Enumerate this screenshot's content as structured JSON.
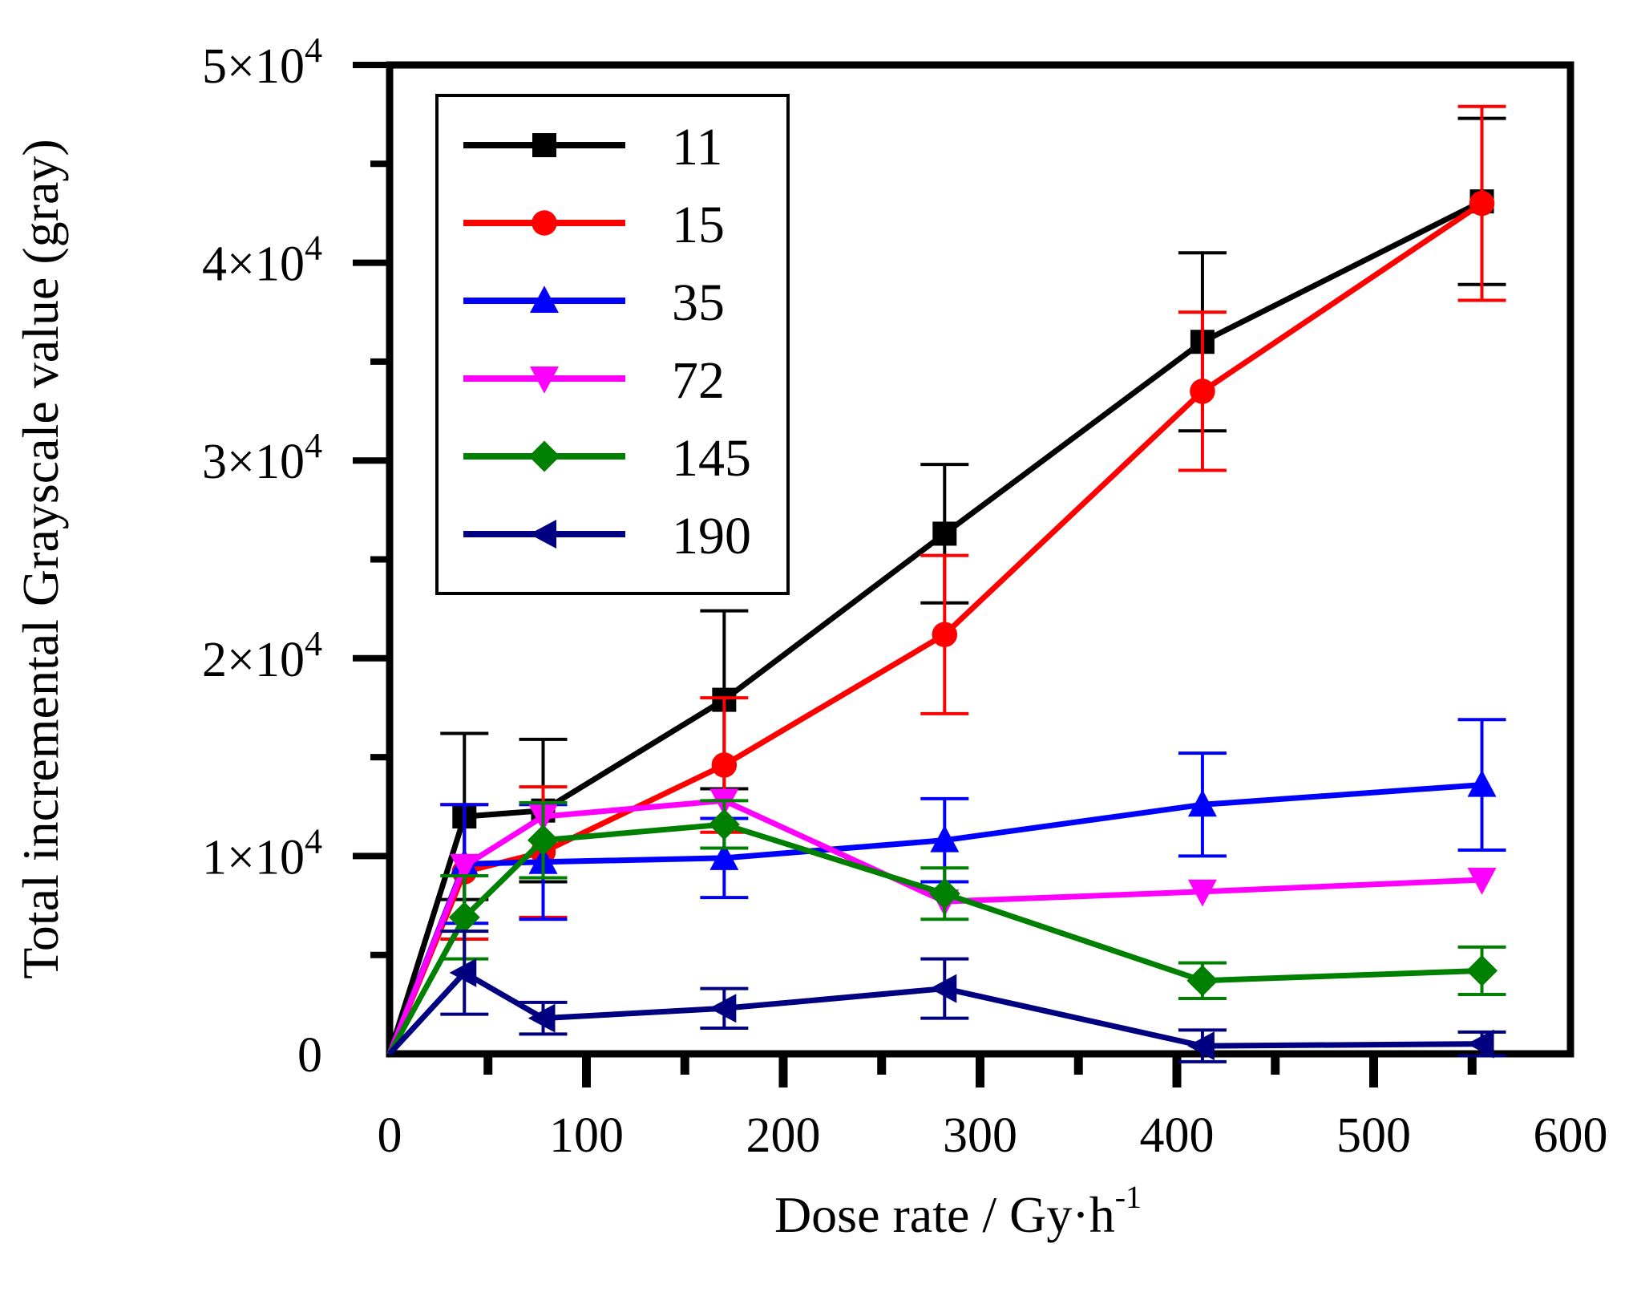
{
  "chart_data": {
    "type": "line",
    "title": "",
    "xlabel": "Dose rate / Gy·h",
    "xlabel_superscript": "-1",
    "ylabel": "Total incremental Grayscale value (gray)",
    "xlim": [
      0,
      600
    ],
    "ylim": [
      0,
      50000
    ],
    "x_ticks": [
      0,
      100,
      200,
      300,
      400,
      500,
      600
    ],
    "y_ticks": [
      {
        "value": 0,
        "mantissa": "0",
        "exponent": ""
      },
      {
        "value": 10000,
        "mantissa": "1×10",
        "exponent": "4"
      },
      {
        "value": 20000,
        "mantissa": "2×10",
        "exponent": "4"
      },
      {
        "value": 30000,
        "mantissa": "3×10",
        "exponent": "4"
      },
      {
        "value": 40000,
        "mantissa": "4×10",
        "exponent": "4"
      },
      {
        "value": 50000,
        "mantissa": "5×10",
        "exponent": "4"
      }
    ],
    "legend_position": "top-left",
    "x": [
      0,
      38,
      78,
      170,
      282,
      413,
      555
    ],
    "series": [
      {
        "name": "11",
        "color": "#000000",
        "marker": "square",
        "values": [
          0,
          12000,
          12300,
          17900,
          26300,
          36000,
          43100
        ],
        "errors": [
          0,
          4200,
          3600,
          4500,
          3500,
          4500,
          4200
        ]
      },
      {
        "name": "15",
        "color": "#ff0000",
        "marker": "circle",
        "values": [
          0,
          9200,
          10200,
          14600,
          21200,
          33500,
          43000
        ],
        "errors": [
          0,
          3400,
          3300,
          3400,
          4000,
          4000,
          4900
        ]
      },
      {
        "name": "35",
        "color": "#0000ff",
        "marker": "triangle-up",
        "values": [
          0,
          9600,
          9700,
          9900,
          10800,
          12600,
          13600
        ],
        "errors": [
          0,
          3000,
          2900,
          2000,
          2100,
          2600,
          3300
        ]
      },
      {
        "name": "72",
        "color": "#ff00ff",
        "marker": "triangle-down",
        "values": [
          0,
          9500,
          12000,
          12800,
          7700,
          8200,
          8800
        ],
        "errors": [
          0,
          0,
          0,
          0,
          0,
          0,
          0
        ]
      },
      {
        "name": "145",
        "color": "#008000",
        "marker": "diamond",
        "values": [
          0,
          6900,
          10800,
          11600,
          8100,
          3700,
          4200
        ],
        "errors": [
          0,
          2100,
          1900,
          1200,
          1300,
          900,
          1200
        ]
      },
      {
        "name": "190",
        "color": "#000080",
        "marker": "triangle-left",
        "values": [
          0,
          4100,
          1800,
          2300,
          3300,
          400,
          500
        ],
        "errors": [
          0,
          2100,
          800,
          1000,
          1500,
          800,
          600
        ]
      }
    ]
  }
}
